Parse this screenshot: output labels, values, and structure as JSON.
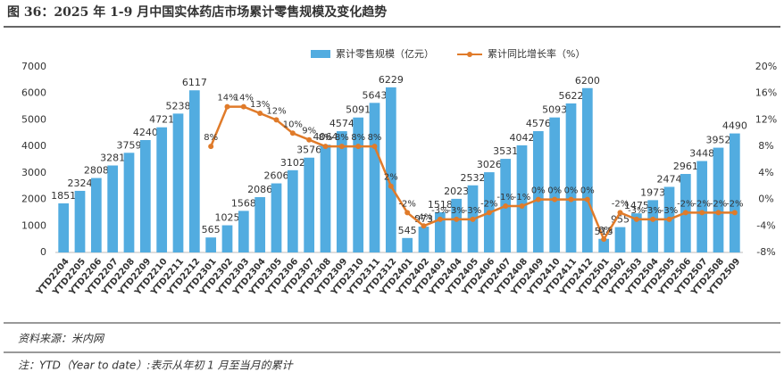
{
  "chart_data": {
    "type": "bar_line",
    "title": "图 36：2025 年 1-9 月中国实体药店市场累计零售规模及变化趋势",
    "categories": [
      "YTD2204",
      "YTD2205",
      "YTD2206",
      "YTD2207",
      "YTD2208",
      "YTD2209",
      "YTD2210",
      "YTD2211",
      "YTD2212",
      "YTD2301",
      "YTD2302",
      "YTD2303",
      "YTD2304",
      "YTD2305",
      "YTD2306",
      "YTD2307",
      "YTD2308",
      "YTD2309",
      "YTD2310",
      "YTD2311",
      "YTD2312",
      "YTD2401",
      "YTD2402",
      "YTD2403",
      "YTD2404",
      "YTD2405",
      "YTD2406",
      "YTD2407",
      "YTD2408",
      "YTD2409",
      "YTD2410",
      "YTD2411",
      "YTD2412",
      "YTD2501",
      "YTD2502",
      "YTD2503",
      "YTD2504",
      "YTD2505",
      "YTD2506",
      "YTD2507",
      "YTD2508",
      "YTD2509"
    ],
    "series": [
      {
        "name": "累计零售规模（亿元）",
        "color": "#52ace0",
        "values": [
          1851,
          2324,
          2808,
          3281,
          3759,
          4240,
          4721,
          5238,
          6117,
          565,
          1025,
          1568,
          2086,
          2606,
          3102,
          3576,
          4064,
          4574,
          5091,
          5643,
          6229,
          545,
          973,
          1518,
          2023,
          2532,
          3026,
          3531,
          4042,
          4576,
          5093,
          5622,
          6200,
          513,
          955,
          1475,
          1973,
          2474,
          2961,
          3448,
          3952,
          4490
        ]
      },
      {
        "name": "累计同比增长率（%）",
        "color": "#e07b2a",
        "axis": "y2",
        "values": [
          null,
          null,
          null,
          null,
          null,
          null,
          null,
          null,
          null,
          8,
          14,
          14,
          13,
          12,
          10,
          9,
          8,
          8,
          8,
          8,
          2,
          -2,
          -4,
          -3,
          -3,
          -3,
          -2,
          -1,
          -1,
          0,
          0,
          0,
          0,
          -6,
          -2,
          -3,
          -3,
          -3,
          -2,
          -2,
          -2,
          -2
        ],
        "value_labels": [
          null,
          null,
          null,
          null,
          null,
          null,
          null,
          null,
          null,
          "8%",
          "14%",
          "14%",
          "13%",
          "12%",
          "10%",
          "9%",
          "8%",
          "8%",
          "8%",
          "8%",
          "2%",
          "-2%",
          "-4%",
          "-3%",
          "-3%",
          "-3%",
          "-2%",
          "-1%",
          "-1%",
          "0%",
          "0%",
          "0%",
          "0%",
          "-6%",
          "-2%",
          "-3%",
          "-3%",
          "-3%",
          "-2%",
          "-2%",
          "-2%",
          "-2%"
        ]
      }
    ],
    "ylim": [
      0,
      7000
    ],
    "yticks": [
      0,
      1000,
      2000,
      3000,
      4000,
      5000,
      6000,
      7000
    ],
    "y2lim": [
      -8,
      20
    ],
    "y2ticks": [
      {
        "value": -8,
        "label": "-8%"
      },
      {
        "value": -4,
        "label": "-4%"
      },
      {
        "value": 0,
        "label": "0%"
      },
      {
        "value": 4,
        "label": "4%"
      },
      {
        "value": 8,
        "label": "8%"
      },
      {
        "value": 12,
        "label": "12%"
      },
      {
        "value": 16,
        "label": "16%"
      },
      {
        "value": 20,
        "label": "20%"
      }
    ],
    "source": "资料来源：米内网",
    "note": "注：YTD（Year to date）:表示从年初 1 月至当月的累计"
  }
}
